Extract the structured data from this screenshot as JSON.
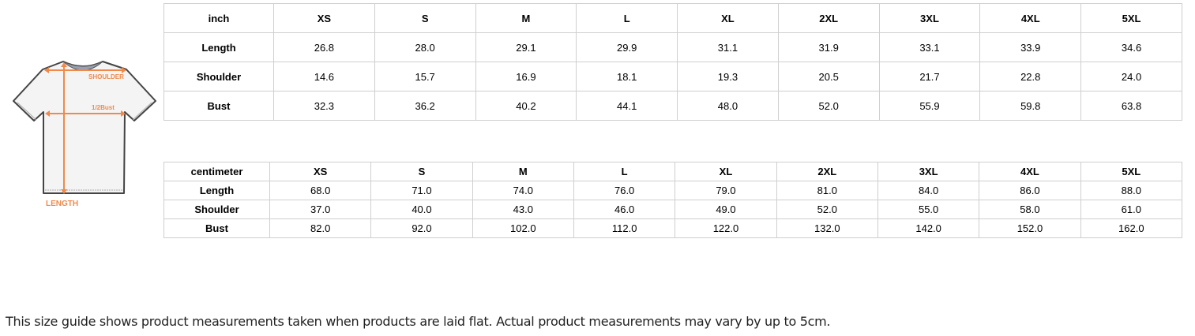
{
  "diagram": {
    "labels": {
      "shoulder": "SHOULDER",
      "bust": "1/2Bust",
      "length": "LENGTH"
    },
    "accent_color": "#f0894a"
  },
  "inch_table": {
    "header": [
      "inch",
      "XS",
      "S",
      "M",
      "L",
      "XL",
      "2XL",
      "3XL",
      "4XL",
      "5XL"
    ],
    "rows": [
      [
        "Length",
        "26.8",
        "28.0",
        "29.1",
        "29.9",
        "31.1",
        "31.9",
        "33.1",
        "33.9",
        "34.6"
      ],
      [
        "Shoulder",
        "14.6",
        "15.7",
        "16.9",
        "18.1",
        "19.3",
        "20.5",
        "21.7",
        "22.8",
        "24.0"
      ],
      [
        "Bust",
        "32.3",
        "36.2",
        "40.2",
        "44.1",
        "48.0",
        "52.0",
        "55.9",
        "59.8",
        "63.8"
      ]
    ]
  },
  "cm_table": {
    "header": [
      "centimeter",
      "XS",
      "S",
      "M",
      "L",
      "XL",
      "2XL",
      "3XL",
      "4XL",
      "5XL"
    ],
    "rows": [
      [
        "Length",
        "68.0",
        "71.0",
        "74.0",
        "76.0",
        "79.0",
        "81.0",
        "84.0",
        "86.0",
        "88.0"
      ],
      [
        "Shoulder",
        "37.0",
        "40.0",
        "43.0",
        "46.0",
        "49.0",
        "52.0",
        "55.0",
        "58.0",
        "61.0"
      ],
      [
        "Bust",
        "82.0",
        "92.0",
        "102.0",
        "112.0",
        "122.0",
        "132.0",
        "142.0",
        "152.0",
        "162.0"
      ]
    ]
  },
  "note": "This size guide shows product measurements taken when products are laid flat. Actual product measurements may vary by up to 5cm."
}
